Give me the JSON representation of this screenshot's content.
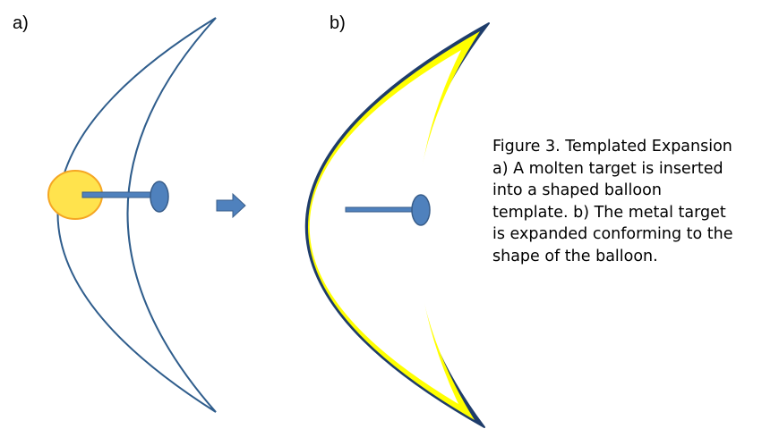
{
  "panels": [
    {
      "label": "a)"
    },
    {
      "label": "b)"
    }
  ],
  "caption": {
    "lines": [
      "Figure 3. Templated Expansion",
      "a) A molten target is inserted",
      "into a shaped balloon",
      "template. b) The metal target",
      "is expanded conforming to the",
      "shape of the balloon."
    ]
  },
  "colors": {
    "balloon_outline": "#2f5d8c",
    "balloon_outline_thick": "#1f3d6b",
    "molten_target_fill": "#ffe34d",
    "molten_target_stroke": "#f5a623",
    "expanded_metal": "#ffff00",
    "rod": "#4f81bd",
    "arrow": "#4f81bd"
  },
  "icons": {
    "process_arrow": "right-arrow-icon"
  }
}
